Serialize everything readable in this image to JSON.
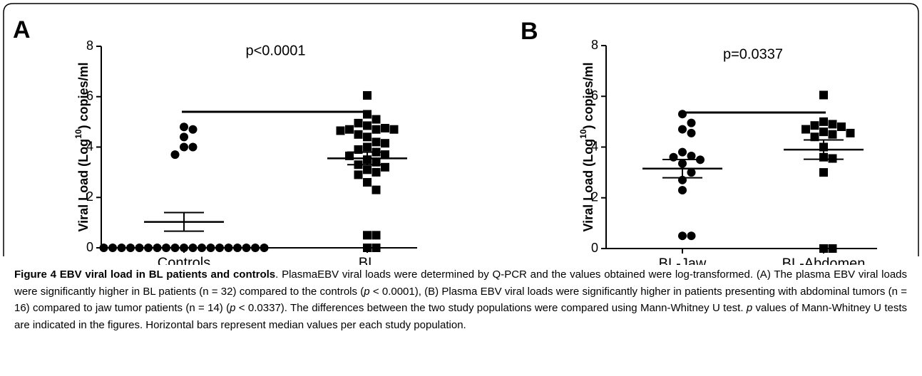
{
  "chart_data": [
    {
      "type": "dot",
      "panel": "A",
      "annotation": "p<0.0001",
      "ylabel": [
        "Viral Load (Log",
        "10",
        ") copies/ml"
      ],
      "categories": [
        "Controls",
        "BL"
      ],
      "markers": [
        "circle",
        "square"
      ],
      "color": "#000000",
      "values": [
        [
          4.8,
          4.7,
          4.4,
          4.0,
          4.0,
          3.7,
          0,
          0,
          0,
          0,
          0,
          0,
          0,
          0,
          0,
          0,
          0,
          0,
          0,
          0,
          0,
          0,
          0,
          0,
          0
        ],
        [
          6.05,
          5.3,
          5.1,
          4.95,
          4.85,
          4.75,
          4.7,
          4.7,
          4.7,
          4.65,
          4.5,
          4.4,
          4.2,
          4.15,
          4.0,
          3.9,
          3.8,
          3.7,
          3.65,
          3.5,
          3.4,
          3.3,
          3.2,
          3.1,
          3.0,
          2.9,
          2.6,
          2.3,
          0.5,
          0.5,
          0,
          0
        ]
      ],
      "center_values": [
        1.03,
        3.55
      ],
      "error_values": [
        0.37,
        0.25
      ],
      "ylim": [
        0,
        8
      ],
      "yticks": [
        0,
        2,
        4,
        6,
        8
      ]
    },
    {
      "type": "dot",
      "panel": "B",
      "annotation": "p=0.0337",
      "ylabel": [
        "Viral Load (Log",
        "10",
        ") copies/ml"
      ],
      "categories": [
        "BL-Jaw",
        "BL-Abdomen"
      ],
      "markers": [
        "circle",
        "square"
      ],
      "color": "#000000",
      "values": [
        [
          5.3,
          4.95,
          4.7,
          4.55,
          3.8,
          3.65,
          3.5,
          3.35,
          3.0,
          2.7,
          2.3,
          3.6,
          0.5,
          0.5
        ],
        [
          6.05,
          5.0,
          4.9,
          4.85,
          4.8,
          4.7,
          4.6,
          4.55,
          4.5,
          4.4,
          4.0,
          3.6,
          3.55,
          3.0,
          0,
          0
        ]
      ],
      "center_values": [
        3.15,
        3.9
      ],
      "error_values": [
        0.36,
        0.38
      ],
      "ylim": [
        0,
        8
      ],
      "yticks": [
        0,
        2,
        4,
        6,
        8
      ]
    }
  ],
  "caption": [
    {
      "text": "Figure 4 EBV viral load in BL patients and controls",
      "bold": true
    },
    {
      "text": ". PlasmaEBV viral loads were determined by Q-PCR and the values obtained were log-transformed. (A) The plasma EBV viral loads were significantly higher in BL patients (n = 32) compared to the controls ("
    },
    {
      "text": "p",
      "italic": true
    },
    {
      "text": " < 0.0001), (B) Plasma EBV viral loads were significantly higher in patients presenting with abdominal tumors (n = 16) compared to jaw tumor patients (n = 14) ("
    },
    {
      "text": "p",
      "italic": true
    },
    {
      "text": " < 0.0337). The differences between the two study populations were compared using Mann-Whitney U test. "
    },
    {
      "text": "p",
      "italic": true
    },
    {
      "text": " values of Mann-Whitney U tests are indicated in the figures. Horizontal bars represent median values per each study population."
    }
  ]
}
